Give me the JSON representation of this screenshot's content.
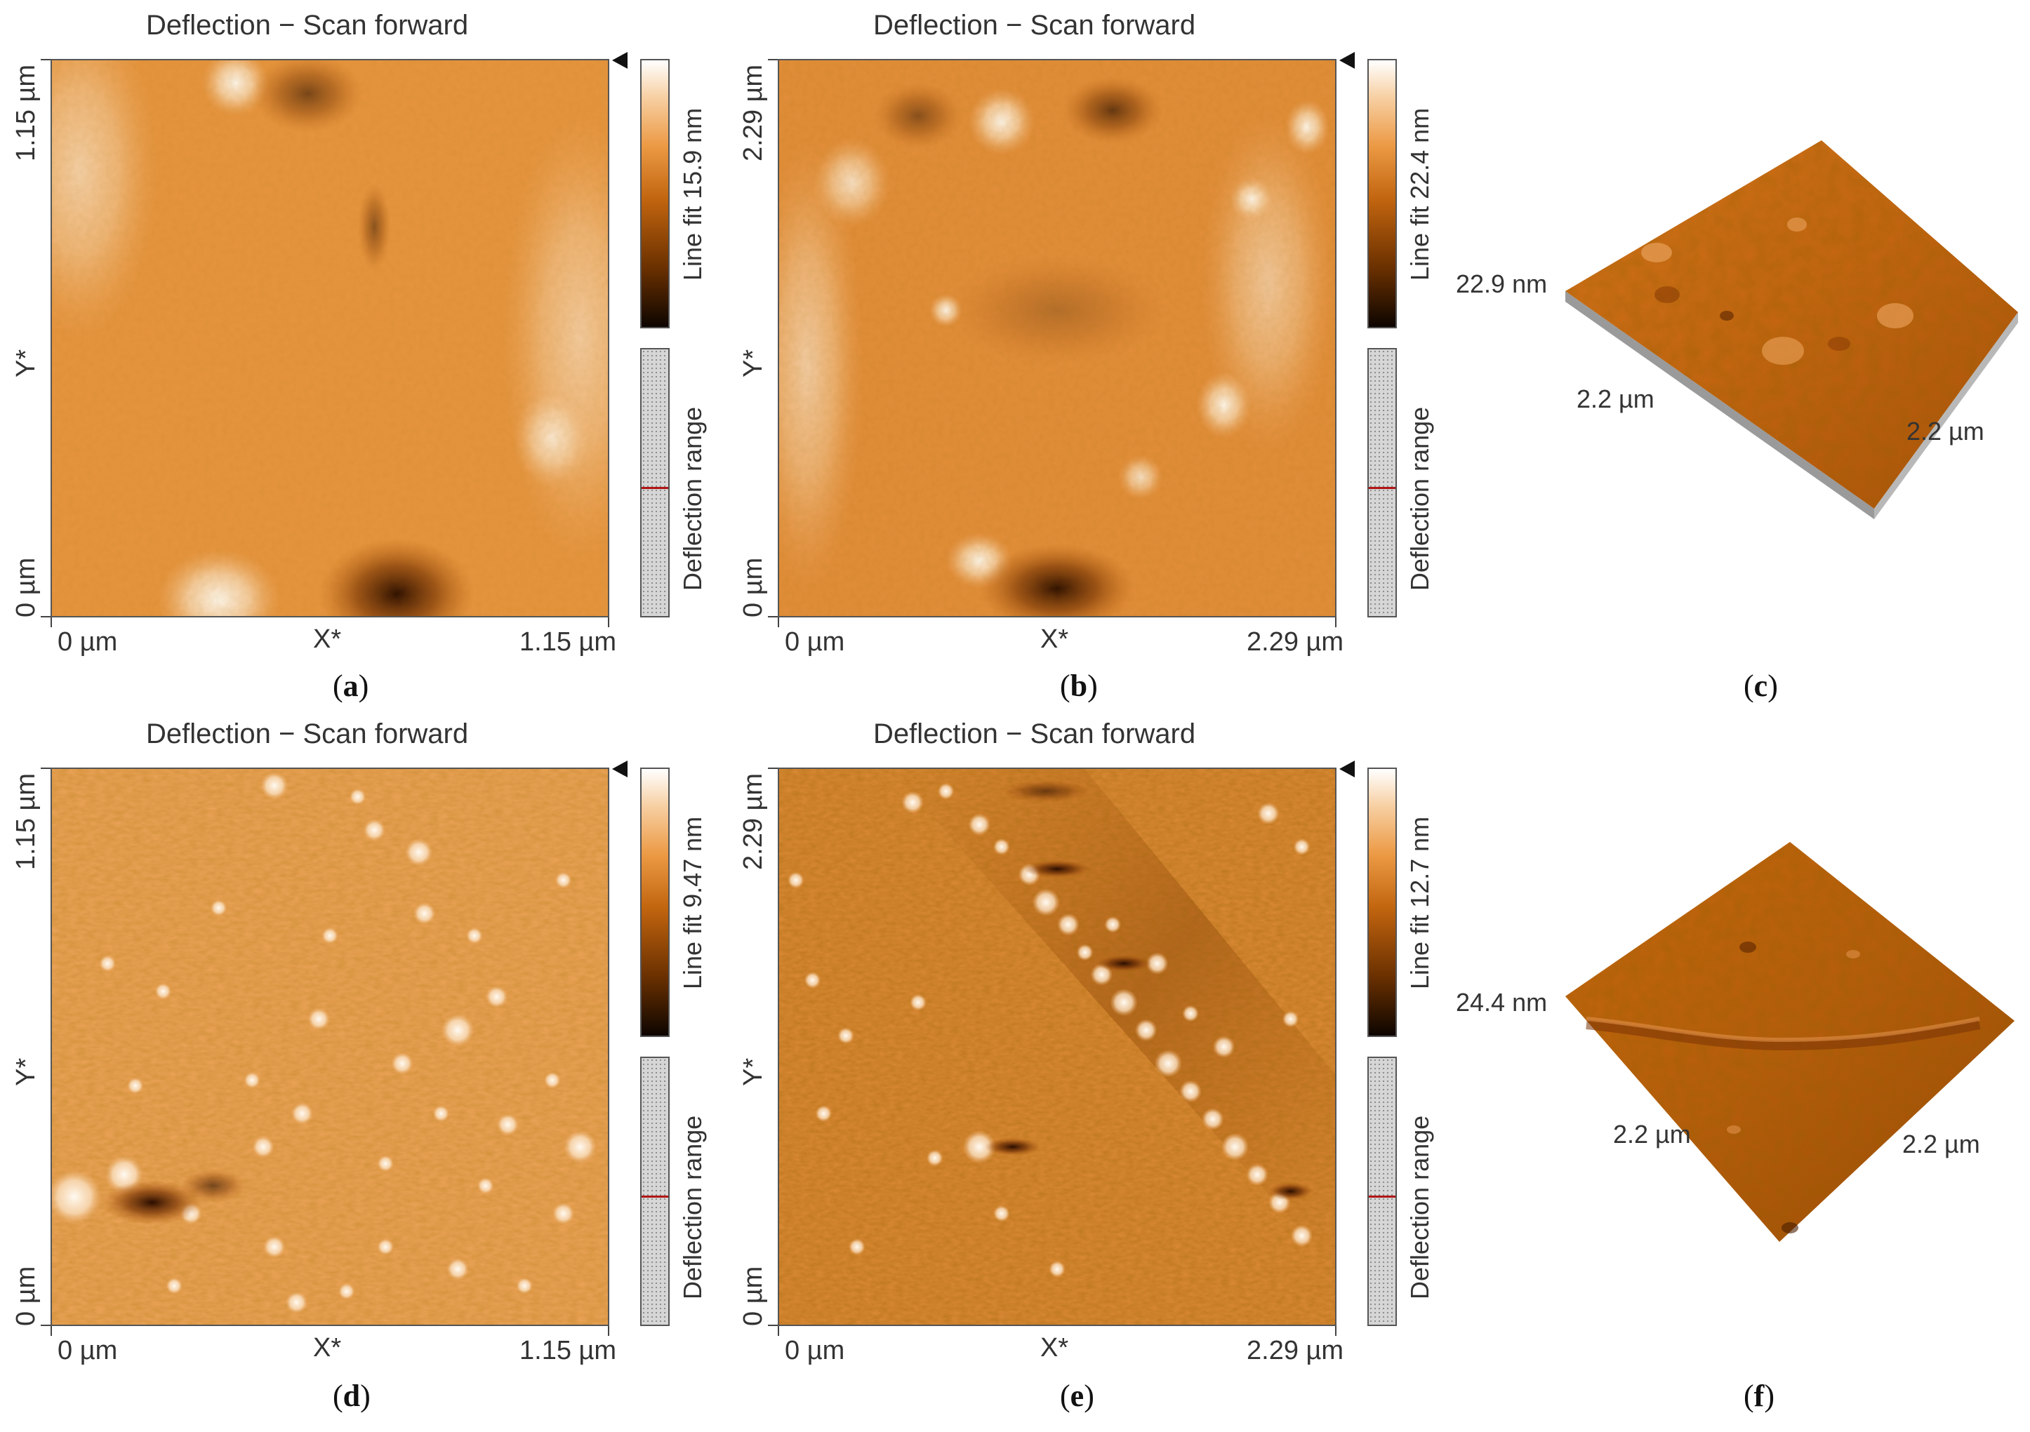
{
  "panels": [
    {
      "title": "Deflection − Scan forward",
      "x_start": "0 µm",
      "x_label": "X*",
      "x_end": "1.15 µm",
      "y_start": "0 µm",
      "y_label": "Y*",
      "y_end": "1.15 µm",
      "colorbar_label": "Line fit 15.9 nm",
      "range_label": "Deflection range",
      "caption_letter": "a"
    },
    {
      "title": "Deflection − Scan forward",
      "x_start": "0 µm",
      "x_label": "X*",
      "x_end": "2.29 µm",
      "y_start": "0 µm",
      "y_label": "Y*",
      "y_end": "2.29 µm",
      "colorbar_label": "Line fit 22.4 nm",
      "range_label": "Deflection range",
      "caption_letter": "b"
    },
    {
      "title": "Deflection − Scan forward",
      "x_start": "0 µm",
      "x_label": "X*",
      "x_end": "1.15 µm",
      "y_start": "0 µm",
      "y_label": "Y*",
      "y_end": "1.15 µm",
      "colorbar_label": "Line fit 9.47 nm",
      "range_label": "Deflection range",
      "caption_letter": "d"
    },
    {
      "title": "Deflection − Scan forward",
      "x_start": "0 µm",
      "x_label": "X*",
      "x_end": "2.29 µm",
      "y_start": "0 µm",
      "y_label": "Y*",
      "y_end": "2.29 µm",
      "colorbar_label": "Line fit 12.7 nm",
      "range_label": "Deflection range",
      "caption_letter": "e"
    }
  ],
  "views3d": [
    {
      "z_label": "22.9 nm",
      "left_label": "2.2 µm",
      "right_label": "2.2 µm",
      "caption_letter": "c"
    },
    {
      "z_label": "24.4 nm",
      "left_label": "2.2 µm",
      "right_label": "2.2 µm",
      "caption_letter": "f"
    }
  ],
  "colors": {
    "afm_base": "#e08a35",
    "afm_dark": "#3a1500",
    "afm_light": "#fff4e6",
    "surface3d": "#c4650f"
  },
  "caption_open": "(",
  "caption_close": ")"
}
